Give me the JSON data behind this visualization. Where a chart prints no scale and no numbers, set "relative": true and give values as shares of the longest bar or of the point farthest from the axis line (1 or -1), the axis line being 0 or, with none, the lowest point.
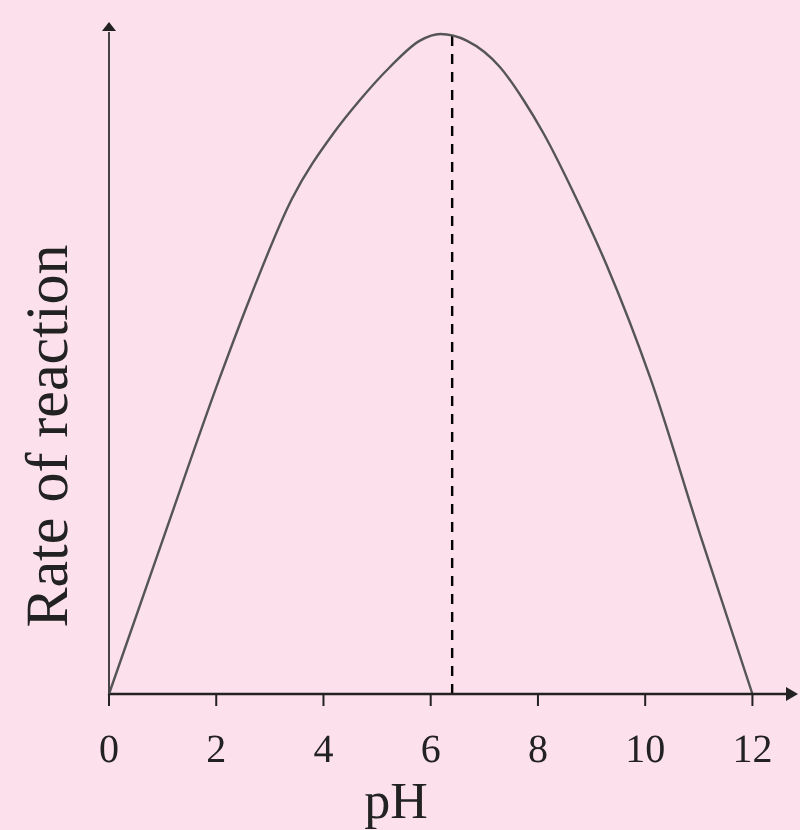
{
  "chart_data": {
    "type": "line",
    "xlabel": "pH",
    "ylabel": "Rate of reaction",
    "relative": true,
    "x": [
      0,
      1.03,
      2.07,
      2.63,
      3.41,
      4.19,
      4.68,
      5.24,
      5.8,
      6.18,
      6.67,
      7.29,
      7.73,
      8.1,
      8.72,
      9.28,
      10.09,
      11.03,
      12
    ],
    "values": [
      0,
      0.24,
      0.48,
      0.6,
      0.75,
      0.85,
      0.9,
      0.95,
      0.99,
      1,
      0.99,
      0.95,
      0.9,
      0.85,
      0.75,
      0.65,
      0.48,
      0.24,
      0
    ],
    "color": "#555555",
    "xlim": [
      0,
      12.85
    ],
    "xticks": [
      0,
      2,
      4,
      6,
      8,
      10,
      12
    ],
    "ref_lines": [
      {
        "axis": "x",
        "value": 6.4,
        "color": "#000000",
        "line_style": "dashed"
      }
    ]
  }
}
